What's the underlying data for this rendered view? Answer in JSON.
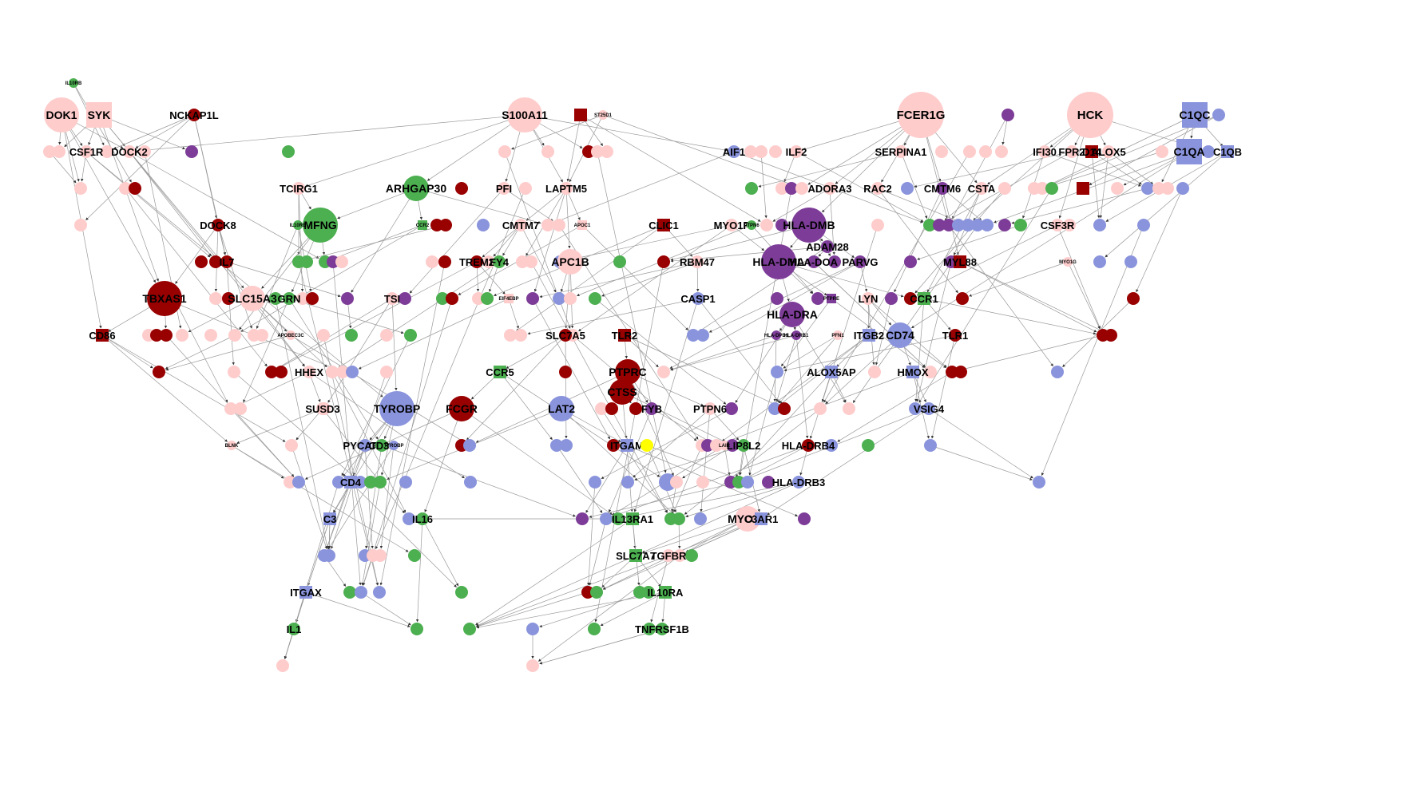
{
  "colors": {
    "pink": "#ffcccc",
    "red": "#990000",
    "purple": "#7d3c98",
    "green": "#4caf50",
    "blue": "#8a94dc",
    "yellow": "#ffff00",
    "edge": "#999999"
  },
  "nodes": [
    {
      "id": "IL10RB",
      "label": "IL10RB",
      "color": "green",
      "shape": "circle",
      "size": "tiny"
    },
    {
      "id": "DOK1",
      "label": "DOK1",
      "color": "pink",
      "shape": "circle",
      "size": "large"
    },
    {
      "id": "SYK",
      "label": "SYK",
      "color": "pink",
      "shape": "square",
      "size": "medium"
    },
    {
      "id": "NCKAP1L",
      "label": "NCKAP1L",
      "color": "red",
      "shape": "circle",
      "size": "small"
    },
    {
      "id": "S100A11",
      "label": "S100A11",
      "color": "pink",
      "shape": "circle",
      "size": "large"
    },
    {
      "id": "CYP4F2",
      "label": "",
      "color": "red",
      "shape": "square",
      "size": "small"
    },
    {
      "id": "ST25D1",
      "label": "ST25D1",
      "color": "pink",
      "shape": "circle",
      "size": "tiny"
    },
    {
      "id": "FCER1G",
      "label": "FCER1G",
      "color": "pink",
      "shape": "circle",
      "size": "xlarge"
    },
    {
      "id": "PU1",
      "label": "",
      "color": "purple",
      "shape": "circle",
      "size": "small"
    },
    {
      "id": "HCK",
      "label": "HCK",
      "color": "pink",
      "shape": "circle",
      "size": "xlarge"
    },
    {
      "id": "C1QC",
      "label": "C1QC",
      "color": "blue",
      "shape": "square",
      "size": "medium"
    },
    {
      "id": "C1QCb",
      "label": "",
      "color": "blue",
      "shape": "circle",
      "size": "small"
    },
    {
      "id": "CSF1R",
      "label": "CSF1R",
      "color": "pink",
      "shape": "circle",
      "size": "small"
    },
    {
      "id": "DOCK2",
      "label": "DOCK2",
      "color": "pink",
      "shape": "circle",
      "size": "small"
    },
    {
      "id": "AIF1",
      "label": "AIF1",
      "color": "blue",
      "shape": "circle",
      "size": "small"
    },
    {
      "id": "ILF2",
      "label": "ILF2",
      "color": "pink",
      "shape": "circle",
      "size": "small"
    },
    {
      "id": "SERPINA1",
      "label": "SERPINA1",
      "color": "pink",
      "shape": "circle",
      "size": "small"
    },
    {
      "id": "IFI30",
      "label": "IFI30",
      "color": "pink",
      "shape": "circle",
      "size": "small"
    },
    {
      "id": "FPR2",
      "label": "FPR2",
      "color": "pink",
      "shape": "circle",
      "size": "small"
    },
    {
      "id": "D14",
      "label": "D14",
      "color": "red",
      "shape": "square",
      "size": "small"
    },
    {
      "id": "ALOX5",
      "label": "ALOX5",
      "color": "pink",
      "shape": "circle",
      "size": "small"
    },
    {
      "id": "C1QA",
      "label": "C1QA",
      "color": "blue",
      "shape": "square",
      "size": "medium"
    },
    {
      "id": "C1QB",
      "label": "C1QB",
      "color": "blue",
      "shape": "square",
      "size": "small"
    },
    {
      "id": "TCIRG1",
      "label": "TCIRG1",
      "color": "pink",
      "shape": "circle",
      "size": "small"
    },
    {
      "id": "ARHGAP30",
      "label": "ARHGAP30",
      "color": "green",
      "shape": "circle",
      "size": "medium"
    },
    {
      "id": "PFI",
      "label": "PFI",
      "color": "pink",
      "shape": "circle",
      "size": "small"
    },
    {
      "id": "LAPTM5",
      "label": "LAPTM5",
      "color": "pink",
      "shape": "circle",
      "size": "small"
    },
    {
      "id": "ADORA3",
      "label": "ADORA3",
      "color": "pink",
      "shape": "circle",
      "size": "small"
    },
    {
      "id": "RAC2",
      "label": "RAC2",
      "color": "pink",
      "shape": "circle",
      "size": "small"
    },
    {
      "id": "CMTM6",
      "label": "CMTM6",
      "color": "purple",
      "shape": "circle",
      "size": "small"
    },
    {
      "id": "CSTA",
      "label": "CSTA",
      "color": "pink",
      "shape": "circle",
      "size": "small"
    },
    {
      "id": "DOCK8",
      "label": "DOCK8",
      "color": "red",
      "shape": "circle",
      "size": "small"
    },
    {
      "id": "MFNG",
      "label": "MFNG",
      "color": "green",
      "shape": "circle",
      "size": "large"
    },
    {
      "id": "IL10RBs",
      "label": "IL10RB",
      "color": "green",
      "shape": "circle",
      "size": "tiny"
    },
    {
      "id": "CCR2",
      "label": "CCR2",
      "color": "green",
      "shape": "square",
      "size": "tiny"
    },
    {
      "id": "CMTM7",
      "label": "CMTM7",
      "color": "pink",
      "shape": "circle",
      "size": "small"
    },
    {
      "id": "APOC1",
      "label": "APOC1",
      "color": "pink",
      "shape": "square",
      "size": "tiny"
    },
    {
      "id": "CLIC1",
      "label": "CLIC1",
      "color": "red",
      "shape": "square",
      "size": "small"
    },
    {
      "id": "MYO1F",
      "label": "MYO1F",
      "color": "pink",
      "shape": "circle",
      "size": "small"
    },
    {
      "id": "PTPN6a",
      "label": "PTPN6",
      "color": "green",
      "shape": "circle",
      "size": "tiny"
    },
    {
      "id": "HLA-DMB",
      "label": "HLA-DMB",
      "color": "purple",
      "shape": "circle",
      "size": "large"
    },
    {
      "id": "CSF3R",
      "label": "CSF3R",
      "color": "pink",
      "shape": "circle",
      "size": "small"
    },
    {
      "id": "ADAM28",
      "label": "ADAM28",
      "color": "purple",
      "shape": "circle",
      "size": "small"
    },
    {
      "id": "IL7",
      "label": "IL7",
      "color": "red",
      "shape": "circle",
      "size": "small"
    },
    {
      "id": "TREM2",
      "label": "TREM2",
      "color": "red",
      "shape": "circle",
      "size": "small"
    },
    {
      "id": "FY4",
      "label": "FY4",
      "color": "green",
      "shape": "circle",
      "size": "small"
    },
    {
      "id": "APC1B",
      "label": "APC1B",
      "color": "pink",
      "shape": "circle",
      "size": "medium"
    },
    {
      "id": "RBM47",
      "label": "RBM47",
      "color": "pink",
      "shape": "circle",
      "size": "small"
    },
    {
      "id": "HLA-DMA",
      "label": "HLA-DMA",
      "color": "purple",
      "shape": "circle",
      "size": "large"
    },
    {
      "id": "HLA-DOA",
      "label": "HLA-DOA",
      "color": "purple",
      "shape": "circle",
      "size": "small"
    },
    {
      "id": "PARVG",
      "label": "PARVG",
      "color": "purple",
      "shape": "circle",
      "size": "small"
    },
    {
      "id": "MYO1G",
      "label": "MYO1G",
      "color": "pink",
      "shape": "circle",
      "size": "tiny"
    },
    {
      "id": "MYL88",
      "label": "MYL88",
      "color": "red",
      "shape": "square",
      "size": "small"
    },
    {
      "id": "TBXAS1",
      "label": "TBXAS1",
      "color": "red",
      "shape": "circle",
      "size": "large"
    },
    {
      "id": "SLC15A3",
      "label": "SLC15A3",
      "color": "pink",
      "shape": "circle",
      "size": "medium"
    },
    {
      "id": "GRN",
      "label": "GRN",
      "color": "green",
      "shape": "circle",
      "size": "small"
    },
    {
      "id": "TSI",
      "label": "TSI",
      "color": "pink",
      "shape": "circle",
      "size": "small"
    },
    {
      "id": "EIF4EBP",
      "label": "EIF4EBP",
      "color": "pink",
      "shape": "square",
      "size": "tiny"
    },
    {
      "id": "CASP1",
      "label": "CASP1",
      "color": "blue",
      "shape": "circle",
      "size": "small"
    },
    {
      "id": "PTPRE",
      "label": "PTPRE",
      "color": "purple",
      "shape": "square",
      "size": "tiny"
    },
    {
      "id": "LYN",
      "label": "LYN",
      "color": "pink",
      "shape": "circle",
      "size": "small"
    },
    {
      "id": "CCR1",
      "label": "CCR1",
      "color": "green",
      "shape": "square",
      "size": "small"
    },
    {
      "id": "HLA-DRA",
      "label": "HLA-DRA",
      "color": "purple",
      "shape": "circle",
      "size": "medium"
    },
    {
      "id": "CD86",
      "label": "CD86",
      "color": "red",
      "shape": "square",
      "size": "small"
    },
    {
      "id": "APOBEC3C",
      "label": "APOBEC3C",
      "color": "pink",
      "shape": "circle",
      "size": "tiny"
    },
    {
      "id": "SLC7A5",
      "label": "SLC7A5",
      "color": "red",
      "shape": "circle",
      "size": "small"
    },
    {
      "id": "TLR2",
      "label": "TLR2",
      "color": "red",
      "shape": "square",
      "size": "small"
    },
    {
      "id": "HLA-DPB1",
      "label": "HLA-DPB1",
      "color": "purple",
      "shape": "circle",
      "size": "tiny"
    },
    {
      "id": "HLA-DRB1",
      "label": "HLA-DRB1",
      "color": "purple",
      "shape": "circle",
      "size": "tiny"
    },
    {
      "id": "PFN1",
      "label": "PFN1",
      "color": "pink",
      "shape": "circle",
      "size": "tiny"
    },
    {
      "id": "ITGB2",
      "label": "ITGB2",
      "color": "blue",
      "shape": "square",
      "size": "small"
    },
    {
      "id": "CD74",
      "label": "CD74",
      "color": "blue",
      "shape": "circle",
      "size": "medium"
    },
    {
      "id": "TLR1",
      "label": "TLR1",
      "color": "red",
      "shape": "circle",
      "size": "small"
    },
    {
      "id": "HHEX",
      "label": "HHEX",
      "color": "pink",
      "shape": "circle",
      "size": "small"
    },
    {
      "id": "CCR5",
      "label": "CCR5",
      "color": "green",
      "shape": "square",
      "size": "small"
    },
    {
      "id": "PTPRC",
      "label": "PTPRC",
      "color": "red",
      "shape": "circle",
      "size": "medium"
    },
    {
      "id": "ALOX5AP",
      "label": "ALOX5AP",
      "color": "blue",
      "shape": "square",
      "size": "small"
    },
    {
      "id": "HMOX",
      "label": "HMOX",
      "color": "blue",
      "shape": "square",
      "size": "small"
    },
    {
      "id": "CTSS",
      "label": "CTSS",
      "color": "red",
      "shape": "circle",
      "size": "medium"
    },
    {
      "id": "SUSD3",
      "label": "SUSD3",
      "color": "pink",
      "shape": "circle",
      "size": "small"
    },
    {
      "id": "TYROBP",
      "label": "TYROBP",
      "color": "blue",
      "shape": "circle",
      "size": "large"
    },
    {
      "id": "FCGR",
      "label": "FCGR",
      "color": "red",
      "shape": "circle",
      "size": "medium"
    },
    {
      "id": "LAT2",
      "label": "LAT2",
      "color": "blue",
      "shape": "circle",
      "size": "medium"
    },
    {
      "id": "FYB",
      "label": "FYB",
      "color": "purple",
      "shape": "circle",
      "size": "small"
    },
    {
      "id": "PTPN6",
      "label": "PTPN6",
      "color": "pink",
      "shape": "circle",
      "size": "small"
    },
    {
      "id": "VSIG4",
      "label": "VSIG4",
      "color": "blue",
      "shape": "circle",
      "size": "small"
    },
    {
      "id": "BLNK",
      "label": "BLNK",
      "color": "pink",
      "shape": "circle",
      "size": "tiny"
    },
    {
      "id": "PYCARD",
      "label": "PYCARD",
      "color": "blue",
      "shape": "circle",
      "size": "small"
    },
    {
      "id": "CD36",
      "label": "CD36",
      "color": "green",
      "shape": "circle",
      "size": "small"
    },
    {
      "id": "TYROBPs",
      "label": "TYROBP",
      "color": "blue",
      "shape": "circle",
      "size": "tiny"
    },
    {
      "id": "ITGAM",
      "label": "ITGAM",
      "color": "blue",
      "shape": "square",
      "size": "small"
    },
    {
      "id": "Y1",
      "label": "",
      "color": "yellow",
      "shape": "circle",
      "size": "small"
    },
    {
      "id": "LAIR",
      "label": "LAIR",
      "color": "pink",
      "shape": "circle",
      "size": "tiny"
    },
    {
      "id": "LIP8L2",
      "label": "LIP8L2",
      "color": "green",
      "shape": "circle",
      "size": "small"
    },
    {
      "id": "HLA-DRB4",
      "label": "HLA-DRB4",
      "color": "red",
      "shape": "circle",
      "size": "small"
    },
    {
      "id": "CD4",
      "label": "CD4",
      "color": "blue",
      "shape": "square",
      "size": "small"
    },
    {
      "id": "HLA-DRB3",
      "label": "HLA-DRB3",
      "color": "blue",
      "shape": "circle",
      "size": "small"
    },
    {
      "id": "C3",
      "label": "C3",
      "color": "blue",
      "shape": "square",
      "size": "small"
    },
    {
      "id": "IL16",
      "label": "IL16",
      "color": "green",
      "shape": "circle",
      "size": "small"
    },
    {
      "id": "IL13RA1",
      "label": "IL13RA1",
      "color": "green",
      "shape": "square",
      "size": "small"
    },
    {
      "id": "MYO7A",
      "label": "MYO7A",
      "color": "pink",
      "shape": "circle",
      "size": "medium"
    },
    {
      "id": "C3AR1",
      "label": "C3AR1",
      "color": "blue",
      "shape": "square",
      "size": "small"
    },
    {
      "id": "SLC7A7",
      "label": "SLC7A7",
      "color": "green",
      "shape": "square",
      "size": "small"
    },
    {
      "id": "TGFBR",
      "label": "TGFBR",
      "color": "pink",
      "shape": "circle",
      "size": "small"
    },
    {
      "id": "ITGAX",
      "label": "ITGAX",
      "color": "blue",
      "shape": "square",
      "size": "small"
    },
    {
      "id": "IL10RA",
      "label": "IL10RA",
      "color": "green",
      "shape": "square",
      "size": "small"
    },
    {
      "id": "IL1",
      "label": "IL1",
      "color": "green",
      "shape": "circle",
      "size": "small"
    },
    {
      "id": "TNFRSF1B",
      "label": "TNFRSF1B",
      "color": "green",
      "shape": "circle",
      "size": "small"
    }
  ]
}
